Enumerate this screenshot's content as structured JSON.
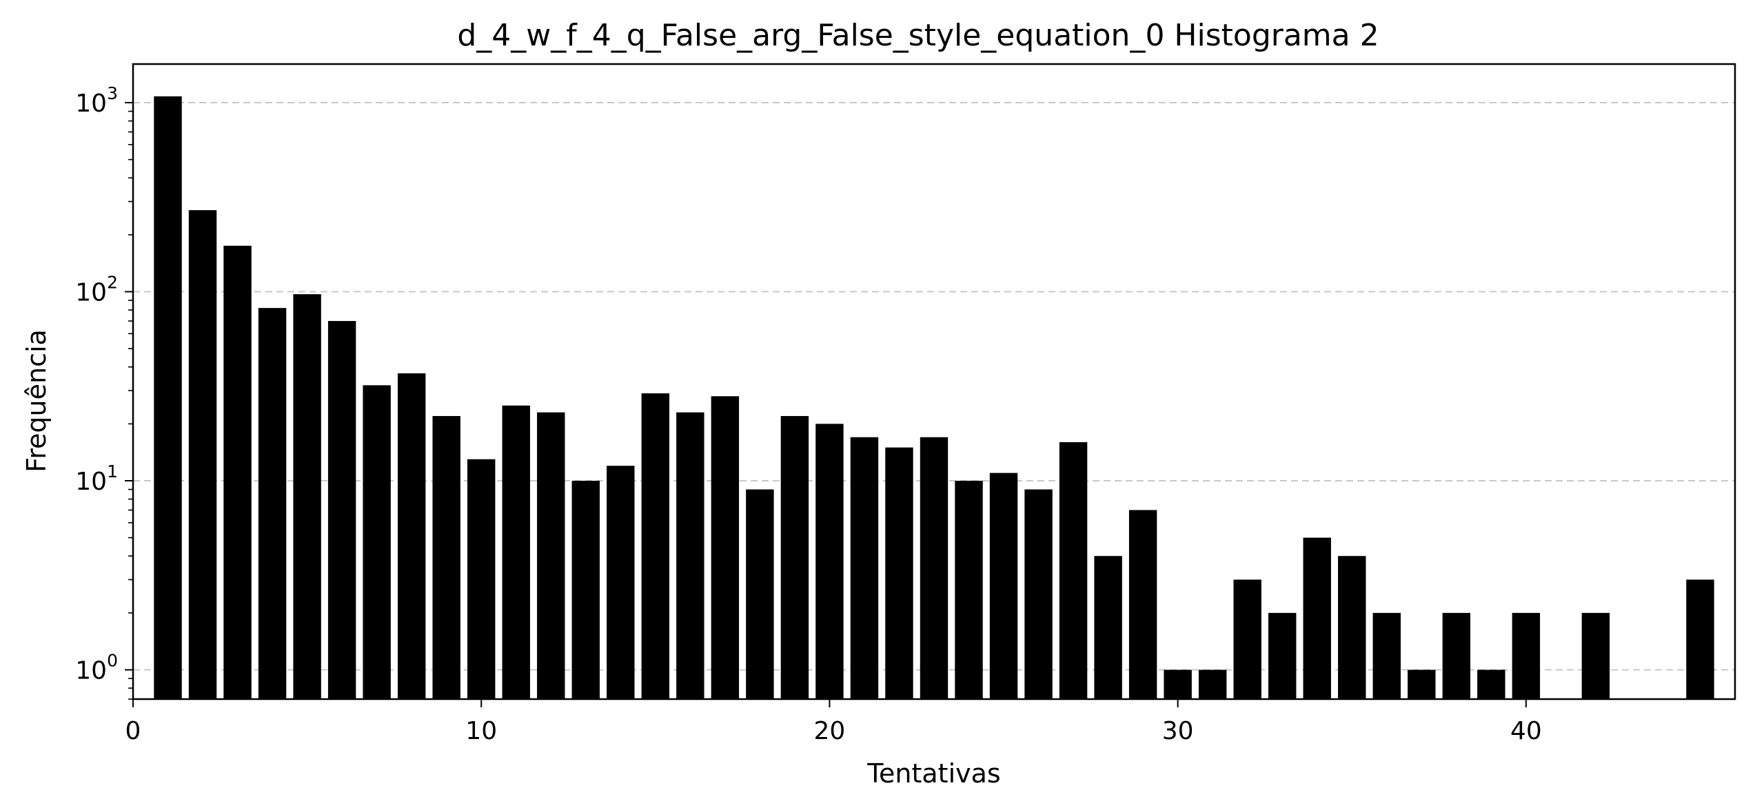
{
  "chart_data": {
    "type": "bar",
    "title": "d_4_w_f_4_q_False_arg_False_style_equation_0 Histograma 2",
    "xlabel": "Tentativas",
    "ylabel": "Frequência",
    "yscale": "log",
    "xlim": [
      0,
      46
    ],
    "ylim": [
      0.7,
      1600
    ],
    "x_ticks": [
      0,
      10,
      20,
      30,
      40
    ],
    "y_ticks": [
      {
        "base": "10",
        "exp": "0",
        "value": 1
      },
      {
        "base": "10",
        "exp": "1",
        "value": 10
      },
      {
        "base": "10",
        "exp": "2",
        "value": 100
      },
      {
        "base": "10",
        "exp": "3",
        "value": 1000
      }
    ],
    "grid": "y-major-dashed",
    "bar_color": "#000000",
    "x": [
      1,
      2,
      3,
      4,
      5,
      6,
      7,
      8,
      9,
      10,
      11,
      12,
      13,
      14,
      15,
      16,
      17,
      18,
      19,
      20,
      21,
      22,
      23,
      24,
      25,
      26,
      27,
      28,
      29,
      30,
      31,
      32,
      33,
      34,
      35,
      36,
      37,
      38,
      39,
      40,
      42,
      45
    ],
    "values": [
      1080,
      270,
      175,
      82,
      97,
      70,
      32,
      37,
      22,
      13,
      25,
      23,
      10,
      12,
      29,
      23,
      28,
      9,
      22,
      20,
      17,
      15,
      17,
      10,
      11,
      9,
      16,
      4,
      7,
      1,
      1,
      3,
      2,
      5,
      4,
      2,
      1,
      2,
      1,
      2,
      2,
      3
    ]
  }
}
